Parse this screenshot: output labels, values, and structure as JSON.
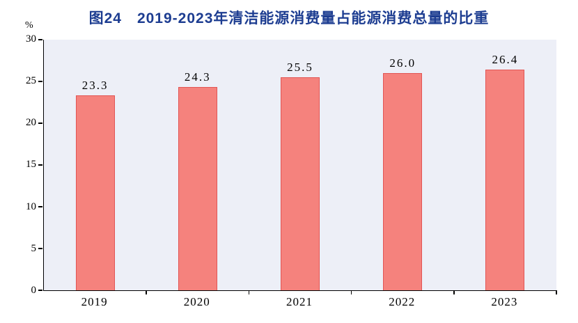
{
  "chart": {
    "unit_label": "%"
  },
  "chart_data": {
    "type": "bar",
    "title": "图24　2019-2023年清洁能源消费量占能源消费总量的比重",
    "categories": [
      "2019",
      "2020",
      "2021",
      "2022",
      "2023"
    ],
    "values": [
      23.3,
      24.3,
      25.5,
      26.0,
      26.4
    ],
    "value_labels": [
      "23.3",
      "24.3",
      "25.5",
      "26.0",
      "26.4"
    ],
    "xlabel": "",
    "ylabel": "%",
    "ylim": [
      0,
      30
    ],
    "yticks": [
      0,
      5,
      10,
      15,
      20,
      25,
      30
    ],
    "grid": false,
    "legend": "none",
    "bar_color": "#f5827d",
    "bar_border_color": "#e25554",
    "plot_bg": "#edeff7",
    "title_color": "#1d3d91"
  }
}
